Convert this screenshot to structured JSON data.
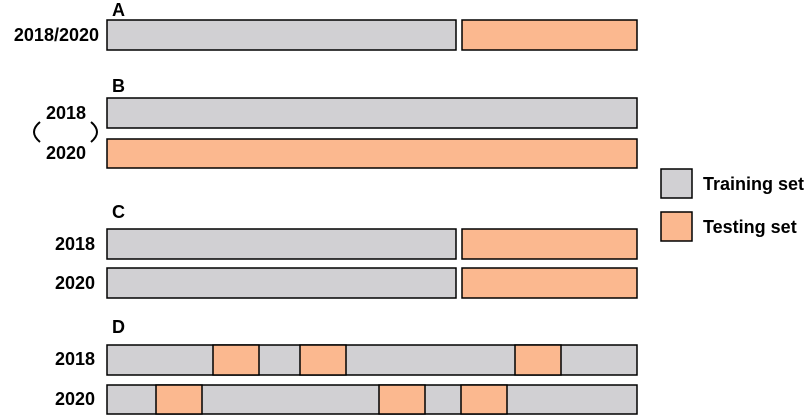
{
  "panels": [
    {
      "label": "A",
      "rows": [
        "2018/2020"
      ]
    },
    {
      "label": "B",
      "rows": [
        "2018",
        "2020"
      ]
    },
    {
      "label": "C",
      "rows": [
        "2018",
        "2020"
      ]
    },
    {
      "label": "D",
      "rows": [
        "2018",
        "2020"
      ]
    }
  ],
  "legend": [
    {
      "label": "Training set"
    },
    {
      "label": "Testing set"
    }
  ]
}
